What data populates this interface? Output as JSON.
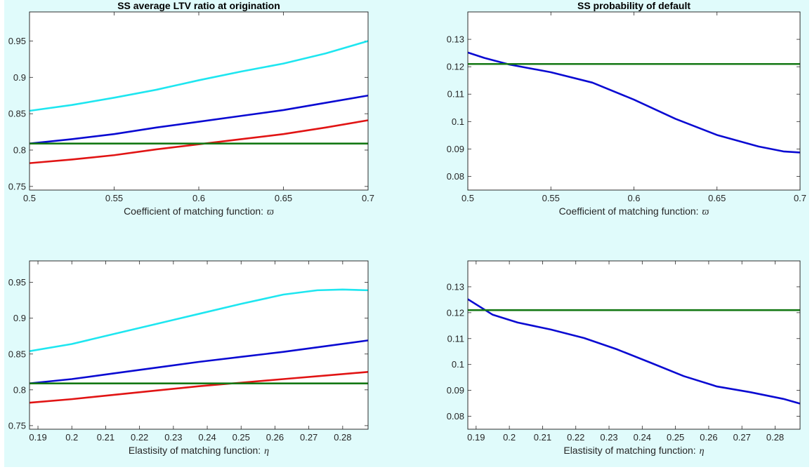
{
  "colors": {
    "figure_background": "#e0fbfb",
    "cyan": "#1ee6f0",
    "blue": "#0a0ad2",
    "red": "#e11414",
    "green": "#147814"
  },
  "chart_data": [
    {
      "type": "line",
      "title": "SS average LTV ratio at origination",
      "xlabel": "Coefficient of matching function:",
      "xlabel_symbol": "ϖ",
      "xlim": [
        0.5,
        0.7
      ],
      "ylim": [
        0.745,
        0.99
      ],
      "xticks": [
        "0.5",
        "0.55",
        "0.6",
        "0.65",
        "0.7"
      ],
      "xtick_values": [
        0.5,
        0.55,
        0.6,
        0.65,
        0.7
      ],
      "yticks": [
        "0.75",
        "0.8",
        "0.85",
        "0.9",
        "0.95"
      ],
      "ytick_values": [
        0.75,
        0.8,
        0.85,
        0.9,
        0.95
      ],
      "grid": false,
      "series": [
        {
          "color": "#1ee6f0",
          "x": [
            0.5,
            0.525,
            0.55,
            0.575,
            0.6,
            0.625,
            0.65,
            0.675,
            0.7
          ],
          "y": [
            0.854,
            0.862,
            0.872,
            0.883,
            0.896,
            0.908,
            0.919,
            0.933,
            0.95
          ]
        },
        {
          "color": "#0a0ad2",
          "x": [
            0.5,
            0.525,
            0.55,
            0.575,
            0.6,
            0.625,
            0.65,
            0.675,
            0.7
          ],
          "y": [
            0.809,
            0.815,
            0.822,
            0.831,
            0.839,
            0.847,
            0.855,
            0.865,
            0.875
          ]
        },
        {
          "color": "#e11414",
          "x": [
            0.5,
            0.525,
            0.55,
            0.575,
            0.6,
            0.625,
            0.65,
            0.675,
            0.7
          ],
          "y": [
            0.782,
            0.787,
            0.793,
            0.801,
            0.808,
            0.815,
            0.822,
            0.831,
            0.841
          ]
        },
        {
          "color": "#147814",
          "x": [
            0.5,
            0.7
          ],
          "y": [
            0.809,
            0.809
          ]
        }
      ]
    },
    {
      "type": "line",
      "title": "SS probability of default",
      "xlabel": "Coefficient of matching function:",
      "xlabel_symbol": "ϖ",
      "xlim": [
        0.5,
        0.7
      ],
      "ylim": [
        0.075,
        0.14
      ],
      "xticks": [
        "0.5",
        "0.55",
        "0.6",
        "0.65",
        "0.7"
      ],
      "xtick_values": [
        0.5,
        0.55,
        0.6,
        0.65,
        0.7
      ],
      "yticks": [
        "0.08",
        "0.09",
        "0.1",
        "0.11",
        "0.12",
        "0.13"
      ],
      "ytick_values": [
        0.08,
        0.09,
        0.1,
        0.11,
        0.12,
        0.13
      ],
      "grid": false,
      "series": [
        {
          "color": "#0a0ad2",
          "x": [
            0.5,
            0.51,
            0.525,
            0.55,
            0.575,
            0.6,
            0.625,
            0.65,
            0.675,
            0.69,
            0.7
          ],
          "y": [
            0.1252,
            0.1232,
            0.1208,
            0.118,
            0.1142,
            0.108,
            0.101,
            0.0951,
            0.0909,
            0.0891,
            0.0887
          ]
        },
        {
          "color": "#147814",
          "x": [
            0.5,
            0.7
          ],
          "y": [
            0.121,
            0.121
          ]
        }
      ]
    },
    {
      "type": "line",
      "title": "",
      "xlabel": "Elastisity of matching function:",
      "xlabel_symbol": "η",
      "xlim": [
        0.1875,
        0.2875
      ],
      "ylim": [
        0.745,
        0.98
      ],
      "xticks": [
        "0.19",
        "0.2",
        "0.21",
        "0.22",
        "0.23",
        "0.24",
        "0.25",
        "0.26",
        "0.27",
        "0.28"
      ],
      "xtick_values": [
        0.19,
        0.2,
        0.21,
        0.22,
        0.23,
        0.24,
        0.25,
        0.26,
        0.27,
        0.28
      ],
      "yticks": [
        "0.75",
        "0.8",
        "0.85",
        "0.9",
        "0.95"
      ],
      "ytick_values": [
        0.75,
        0.8,
        0.85,
        0.9,
        0.95
      ],
      "grid": false,
      "series": [
        {
          "color": "#1ee6f0",
          "x": [
            0.1875,
            0.2,
            0.2125,
            0.225,
            0.2375,
            0.25,
            0.2625,
            0.2725,
            0.28,
            0.2875
          ],
          "y": [
            0.854,
            0.864,
            0.878,
            0.892,
            0.906,
            0.92,
            0.933,
            0.939,
            0.94,
            0.939
          ]
        },
        {
          "color": "#0a0ad2",
          "x": [
            0.1875,
            0.2,
            0.2125,
            0.225,
            0.2375,
            0.25,
            0.2625,
            0.275,
            0.2875
          ],
          "y": [
            0.809,
            0.815,
            0.823,
            0.831,
            0.839,
            0.846,
            0.853,
            0.861,
            0.869
          ]
        },
        {
          "color": "#e11414",
          "x": [
            0.1875,
            0.2,
            0.2125,
            0.225,
            0.2375,
            0.25,
            0.2625,
            0.275,
            0.2875
          ],
          "y": [
            0.782,
            0.787,
            0.793,
            0.799,
            0.805,
            0.81,
            0.815,
            0.82,
            0.825
          ]
        },
        {
          "color": "#147814",
          "x": [
            0.1875,
            0.2875
          ],
          "y": [
            0.809,
            0.809
          ]
        }
      ]
    },
    {
      "type": "line",
      "title": "",
      "xlabel": "Elastisity of matching function:",
      "xlabel_symbol": "η",
      "xlim": [
        0.1875,
        0.2875
      ],
      "ylim": [
        0.075,
        0.14
      ],
      "xticks": [
        "0.19",
        "0.2",
        "0.21",
        "0.22",
        "0.23",
        "0.24",
        "0.25",
        "0.26",
        "0.27",
        "0.28"
      ],
      "xtick_values": [
        0.19,
        0.2,
        0.21,
        0.22,
        0.23,
        0.24,
        0.25,
        0.26,
        0.27,
        0.28
      ],
      "yticks": [
        "0.08",
        "0.09",
        "0.1",
        "0.11",
        "0.12",
        "0.13"
      ],
      "ytick_values": [
        0.08,
        0.09,
        0.1,
        0.11,
        0.12,
        0.13
      ],
      "grid": false,
      "series": [
        {
          "color": "#0a0ad2",
          "x": [
            0.1875,
            0.195,
            0.2025,
            0.2125,
            0.2225,
            0.2325,
            0.2425,
            0.2525,
            0.2625,
            0.2725,
            0.2825,
            0.2875
          ],
          "y": [
            0.1252,
            0.1192,
            0.1162,
            0.1135,
            0.1102,
            0.1058,
            0.1007,
            0.0955,
            0.0915,
            0.0893,
            0.0867,
            0.0849
          ]
        },
        {
          "color": "#147814",
          "x": [
            0.1875,
            0.2875
          ],
          "y": [
            0.121,
            0.121
          ]
        }
      ]
    }
  ]
}
